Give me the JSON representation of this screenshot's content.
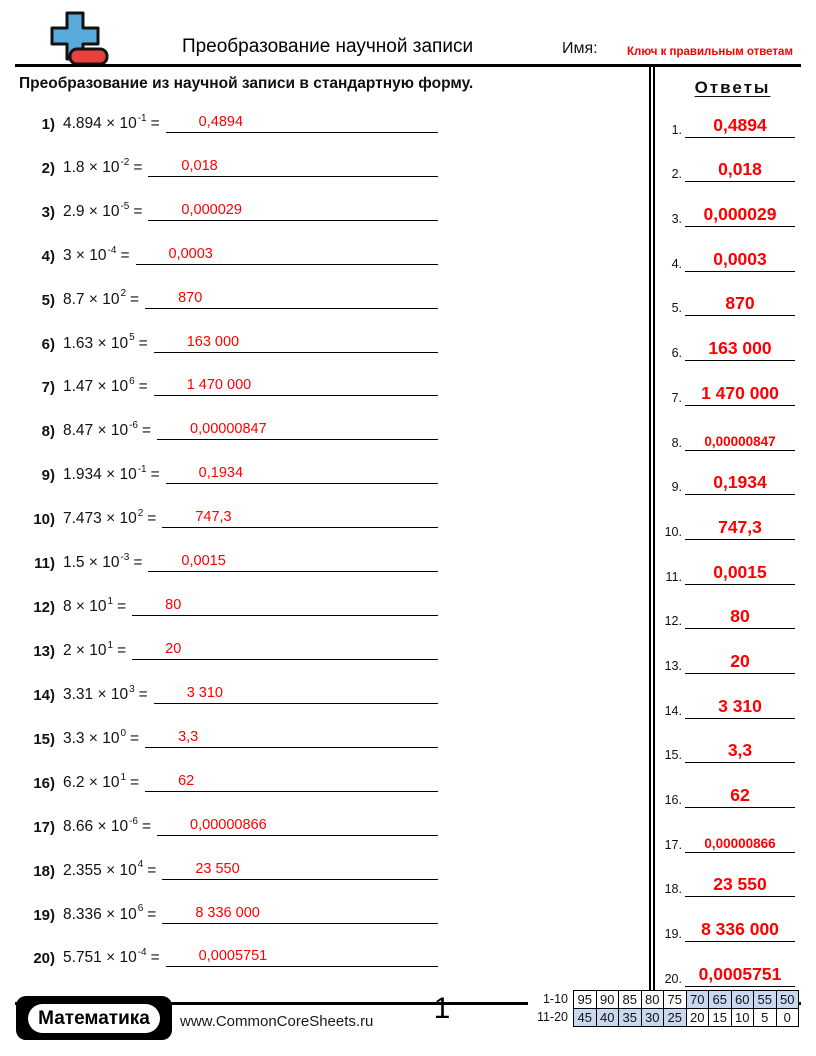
{
  "header": {
    "title": "Преобразование научной записи",
    "name_label": "Имя:",
    "key_label": "Ключ к правильным ответам",
    "instruction": "Преобразование из научной записи в стандартную форму.",
    "answers_title": "Ответы"
  },
  "symbols": {
    "equals": "="
  },
  "colors": {
    "answer_red": "#fe0000",
    "icon_plus_blue": "#58aadb",
    "icon_bar_red": "#e8413d",
    "score_shade_blue": "#c6d9f1"
  },
  "problems": [
    {
      "num": "1)",
      "lead": "4.894 × 10",
      "exp": "-1",
      "answer": "0,4894"
    },
    {
      "num": "2)",
      "lead": "1.8 × 10",
      "exp": "-2",
      "answer": "0,018"
    },
    {
      "num": "3)",
      "lead": "2.9 × 10",
      "exp": "-5",
      "answer": "0,000029"
    },
    {
      "num": "4)",
      "lead": "3 × 10",
      "exp": "-4",
      "answer": "0,0003"
    },
    {
      "num": "5)",
      "lead": "8.7 × 10",
      "exp": "2",
      "answer": "870"
    },
    {
      "num": "6)",
      "lead": "1.63 × 10",
      "exp": "5",
      "answer": "163 000"
    },
    {
      "num": "7)",
      "lead": "1.47 × 10",
      "exp": "6",
      "answer": "1 470 000"
    },
    {
      "num": "8)",
      "lead": "8.47 × 10",
      "exp": "-6",
      "answer": "0,00000847"
    },
    {
      "num": "9)",
      "lead": "1.934 × 10",
      "exp": "-1",
      "answer": "0,1934"
    },
    {
      "num": "10)",
      "lead": "7.473 × 10",
      "exp": "2",
      "answer": "747,3"
    },
    {
      "num": "11)",
      "lead": "1.5 × 10",
      "exp": "-3",
      "answer": "0,0015"
    },
    {
      "num": "12)",
      "lead": "8 × 10",
      "exp": "1",
      "answer": "80"
    },
    {
      "num": "13)",
      "lead": "2 × 10",
      "exp": "1",
      "answer": "20"
    },
    {
      "num": "14)",
      "lead": "3.31 × 10",
      "exp": "3",
      "answer": "3 310"
    },
    {
      "num": "15)",
      "lead": "3.3 × 10",
      "exp": "0",
      "answer": "3,3"
    },
    {
      "num": "16)",
      "lead": "6.2 × 10",
      "exp": "1",
      "answer": "62"
    },
    {
      "num": "17)",
      "lead": "8.66 × 10",
      "exp": "-6",
      "answer": "0,00000866"
    },
    {
      "num": "18)",
      "lead": "2.355 × 10",
      "exp": "4",
      "answer": "23 550"
    },
    {
      "num": "19)",
      "lead": "8.336 × 10",
      "exp": "6",
      "answer": "8 336 000"
    },
    {
      "num": "20)",
      "lead": "5.751 × 10",
      "exp": "-4",
      "answer": "0,0005751"
    }
  ],
  "answers": [
    {
      "label": "1.",
      "value": "0,4894"
    },
    {
      "label": "2.",
      "value": "0,018"
    },
    {
      "label": "3.",
      "value": "0,000029"
    },
    {
      "label": "4.",
      "value": "0,0003"
    },
    {
      "label": "5.",
      "value": "870"
    },
    {
      "label": "6.",
      "value": "163 000"
    },
    {
      "label": "7.",
      "value": "1 470 000"
    },
    {
      "label": "8.",
      "value": "0,00000847"
    },
    {
      "label": "9.",
      "value": "0,1934"
    },
    {
      "label": "10.",
      "value": "747,3"
    },
    {
      "label": "11.",
      "value": "0,0015"
    },
    {
      "label": "12.",
      "value": "80"
    },
    {
      "label": "13.",
      "value": "20"
    },
    {
      "label": "14.",
      "value": "3 310"
    },
    {
      "label": "15.",
      "value": "3,3"
    },
    {
      "label": "16.",
      "value": "62"
    },
    {
      "label": "17.",
      "value": "0,00000866"
    },
    {
      "label": "18.",
      "value": "23 550"
    },
    {
      "label": "19.",
      "value": "8 336 000"
    },
    {
      "label": "20.",
      "value": "0,0005751"
    }
  ],
  "footer": {
    "logo_text": "Математика",
    "url": "www.CommonCoreSheets.ru",
    "page_number": "1",
    "score_table": {
      "shade_color": "#c6d9f1",
      "rows": [
        {
          "label": "1-10",
          "values": [
            "95",
            "90",
            "85",
            "80",
            "75",
            "70",
            "65",
            "60",
            "55",
            "50"
          ],
          "shaded": [
            5,
            6,
            7,
            8,
            9
          ]
        },
        {
          "label": "11-20",
          "values": [
            "45",
            "40",
            "35",
            "30",
            "25",
            "20",
            "15",
            "10",
            "5",
            "0"
          ],
          "shaded": [
            0,
            1,
            2,
            3,
            4
          ]
        }
      ]
    }
  }
}
